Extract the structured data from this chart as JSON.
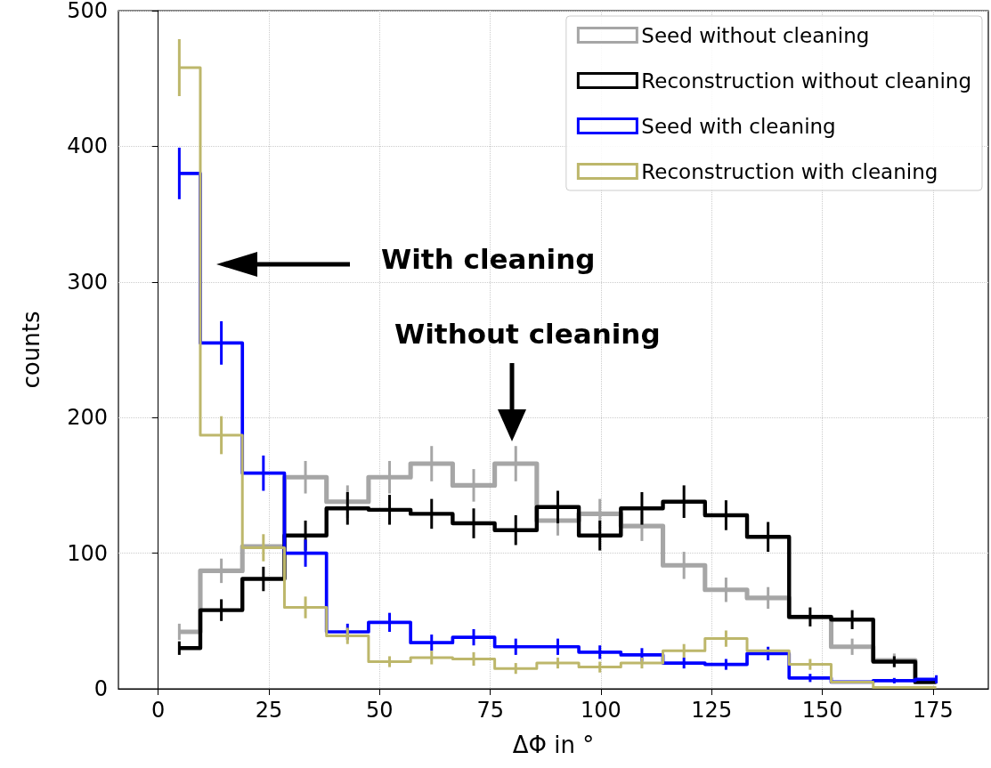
{
  "chart_data": {
    "type": "step",
    "xlabel": "ΔΦ in °",
    "ylabel": "counts",
    "x": [
      4.75,
      14.25,
      23.75,
      33.25,
      42.75,
      52.25,
      61.75,
      71.25,
      80.75,
      90.25,
      99.75,
      109.25,
      118.75,
      128.25,
      137.75,
      147.25,
      156.75,
      166.25,
      175.75
    ],
    "xlim": [
      -9,
      187.5
    ],
    "xticks": [
      0,
      25,
      50,
      75,
      100,
      125,
      150,
      175
    ],
    "ylim": [
      0,
      500
    ],
    "yticks": [
      0,
      100,
      200,
      300,
      400,
      500
    ],
    "grid": true,
    "legend": "top right",
    "line_style": "solid",
    "series": [
      {
        "name": "Seed without cleaning",
        "color": "#a6a6a6",
        "values": [
          42,
          87,
          105,
          156,
          138,
          156,
          166,
          150,
          166,
          124,
          129,
          120,
          91,
          73,
          67,
          53,
          31,
          21,
          5
        ],
        "errors": [
          6,
          9,
          null,
          12,
          12,
          12,
          13,
          12,
          13,
          11,
          11,
          11,
          10,
          9,
          8,
          null,
          6,
          5,
          null
        ]
      },
      {
        "name": "Reconstruction without cleaning",
        "color": "#000000",
        "values": [
          30,
          58,
          81,
          113,
          133,
          132,
          129,
          122,
          117,
          134,
          113,
          133,
          138,
          128,
          112,
          53,
          51,
          20,
          5
        ],
        "errors": [
          5,
          8,
          9,
          11,
          12,
          11,
          11,
          11,
          11,
          12,
          11,
          12,
          12,
          11,
          11,
          7,
          7,
          4,
          null
        ]
      },
      {
        "name": "Seed with cleaning",
        "color": "#0000ff",
        "values": [
          380,
          255,
          159,
          100,
          42,
          49,
          34,
          38,
          31,
          31,
          27,
          25,
          19,
          18,
          26,
          8,
          5,
          6,
          7
        ],
        "errors": [
          19,
          16,
          13,
          10,
          6,
          7,
          6,
          6,
          6,
          6,
          5,
          5,
          4,
          4,
          5,
          3,
          null,
          2,
          3
        ]
      },
      {
        "name": "Reconstruction with cleaning",
        "color": "#bdb76b",
        "values": [
          458,
          187,
          104,
          60,
          39,
          20,
          23,
          22,
          15,
          19,
          16,
          19,
          28,
          37,
          28,
          18,
          5,
          1,
          1
        ],
        "errors": [
          21,
          14,
          10,
          8,
          6,
          4,
          5,
          5,
          4,
          4,
          4,
          4,
          5,
          6,
          null,
          4,
          null,
          null,
          null
        ]
      }
    ],
    "annotations": [
      "With cleaning",
      "Without cleaning"
    ]
  }
}
